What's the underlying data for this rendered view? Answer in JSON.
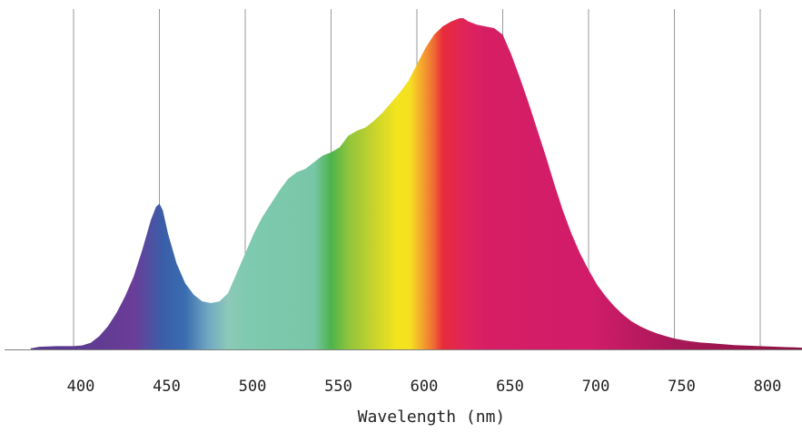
{
  "chart_data": {
    "type": "area",
    "title": "",
    "xlabel": "Wavelength (nm)",
    "ylabel": "",
    "x_ticks": [
      400,
      450,
      500,
      550,
      600,
      650,
      700,
      750,
      800
    ],
    "xlim": [
      375,
      825
    ],
    "ylim": [
      0,
      1
    ],
    "grid": "vertical",
    "legend": "none",
    "series": [
      {
        "x": [
          375,
          380,
          390,
          400,
          405,
          410,
          415,
          420,
          425,
          430,
          435,
          440,
          445,
          448,
          450,
          452,
          455,
          460,
          465,
          470,
          475,
          480,
          485,
          490,
          495,
          500,
          505,
          510,
          515,
          520,
          525,
          530,
          535,
          540,
          545,
          550,
          555,
          560,
          565,
          570,
          575,
          580,
          585,
          590,
          595,
          600,
          605,
          610,
          615,
          620,
          625,
          627,
          630,
          635,
          640,
          645,
          650,
          655,
          660,
          665,
          670,
          675,
          680,
          685,
          690,
          695,
          700,
          705,
          710,
          715,
          720,
          725,
          730,
          735,
          740,
          745,
          750,
          755,
          760,
          765,
          770,
          775,
          780,
          785,
          790,
          795,
          800,
          805,
          810,
          815,
          820,
          825
        ],
        "values": [
          0.003,
          0.008,
          0.01,
          0.01,
          0.012,
          0.02,
          0.04,
          0.07,
          0.11,
          0.16,
          0.22,
          0.3,
          0.39,
          0.43,
          0.44,
          0.42,
          0.35,
          0.26,
          0.2,
          0.165,
          0.145,
          0.14,
          0.145,
          0.17,
          0.23,
          0.29,
          0.35,
          0.4,
          0.44,
          0.48,
          0.515,
          0.535,
          0.545,
          0.565,
          0.585,
          0.595,
          0.61,
          0.645,
          0.66,
          0.67,
          0.69,
          0.715,
          0.745,
          0.775,
          0.81,
          0.86,
          0.91,
          0.95,
          0.975,
          0.99,
          1.0,
          1.0,
          0.99,
          0.98,
          0.975,
          0.97,
          0.95,
          0.89,
          0.82,
          0.745,
          0.665,
          0.585,
          0.5,
          0.42,
          0.35,
          0.29,
          0.24,
          0.195,
          0.16,
          0.13,
          0.105,
          0.085,
          0.07,
          0.058,
          0.048,
          0.04,
          0.033,
          0.028,
          0.024,
          0.021,
          0.019,
          0.017,
          0.015,
          0.013,
          0.012,
          0.011,
          0.01,
          0.009,
          0.008,
          0.007,
          0.006,
          0.005
        ]
      }
    ],
    "colors": {
      "gridline": "#9a9a9a",
      "baseline": "#808080",
      "spectrum_stops": [
        {
          "nm": 400,
          "color": "#5a3a8e"
        },
        {
          "nm": 435,
          "color": "#6a3d98"
        },
        {
          "nm": 452,
          "color": "#3a5ea8"
        },
        {
          "nm": 465,
          "color": "#3a6cb0"
        },
        {
          "nm": 478,
          "color": "#6fa7c2"
        },
        {
          "nm": 490,
          "color": "#8cc9b8"
        },
        {
          "nm": 500,
          "color": "#7fcab0"
        },
        {
          "nm": 540,
          "color": "#78c6a8"
        },
        {
          "nm": 550,
          "color": "#4cb34c"
        },
        {
          "nm": 560,
          "color": "#8fc43c"
        },
        {
          "nm": 575,
          "color": "#c8d32c"
        },
        {
          "nm": 588,
          "color": "#f2e41e"
        },
        {
          "nm": 596,
          "color": "#f5e020"
        },
        {
          "nm": 603,
          "color": "#f4a52c"
        },
        {
          "nm": 610,
          "color": "#ee6a35"
        },
        {
          "nm": 615,
          "color": "#e82c3a"
        },
        {
          "nm": 628,
          "color": "#e0245a"
        },
        {
          "nm": 640,
          "color": "#d61e64"
        },
        {
          "nm": 700,
          "color": "#d21c6a"
        },
        {
          "nm": 750,
          "color": "#a81858"
        },
        {
          "nm": 825,
          "color": "#8a1240"
        }
      ]
    }
  }
}
